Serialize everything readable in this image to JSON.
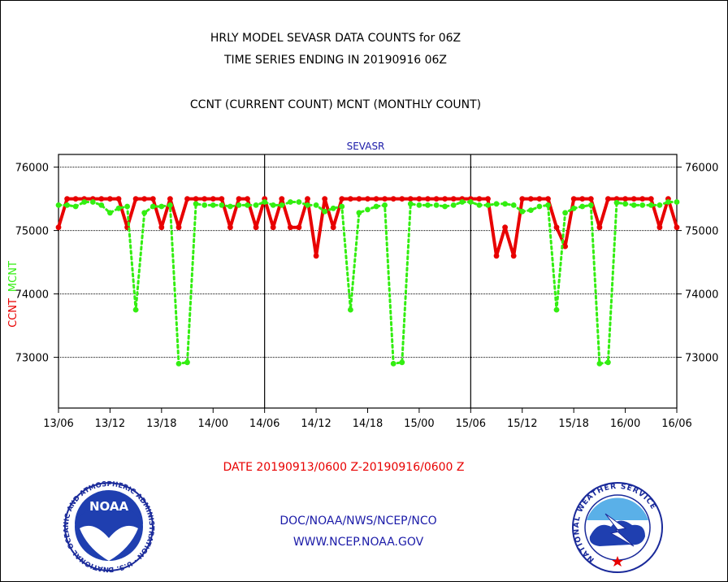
{
  "chart_data": {
    "type": "line",
    "title": "HRLY MODEL SEVASR DATA COUNTS for 06Z",
    "subtitle": "TIME SERIES ENDING IN 20190916 06Z",
    "description_line": "CCNT (CURRENT COUNT) MCNT (MONTHLY COUNT)",
    "panel_label": "SEVASR",
    "ylabel_ccnt": "CCNT",
    "ylabel_mcnt": "MCNT",
    "ylim": [
      72200,
      76200
    ],
    "yticks": [
      {
        "value": 73000,
        "label": "73000"
      },
      {
        "value": 74000,
        "label": "74000"
      },
      {
        "value": 75000,
        "label": "75000"
      },
      {
        "value": 76000,
        "label": "76000"
      }
    ],
    "xlim": [
      0,
      72
    ],
    "xticks": [
      {
        "hour": 0,
        "label": "13/06"
      },
      {
        "hour": 6,
        "label": "13/12"
      },
      {
        "hour": 12,
        "label": "13/18"
      },
      {
        "hour": 18,
        "label": "14/00"
      },
      {
        "hour": 24,
        "label": "14/06"
      },
      {
        "hour": 30,
        "label": "14/12"
      },
      {
        "hour": 36,
        "label": "14/18"
      },
      {
        "hour": 42,
        "label": "15/00"
      },
      {
        "hour": 48,
        "label": "15/06"
      },
      {
        "hour": 54,
        "label": "15/12"
      },
      {
        "hour": 60,
        "label": "15/18"
      },
      {
        "hour": 66,
        "label": "16/00"
      },
      {
        "hour": 72,
        "label": "16/06"
      }
    ],
    "day_dividers": [
      24,
      48
    ],
    "date_range_label": "DATE 20190913/0600 Z-20190916/0600 Z",
    "series": [
      {
        "name": "CCNT",
        "color": "#e80000",
        "style": "solid",
        "values": [
          75050,
          75500,
          75500,
          75500,
          75500,
          75500,
          75500,
          75500,
          75050,
          75500,
          75500,
          75500,
          75050,
          75500,
          75050,
          75500,
          75500,
          75500,
          75500,
          75500,
          75050,
          75500,
          75500,
          75050,
          75500,
          75050,
          75500,
          75050,
          75050,
          75500,
          74600,
          75500,
          75050,
          75500,
          75500,
          75500,
          75500,
          75500,
          75500,
          75500,
          75500,
          75500,
          75500,
          75500,
          75500,
          75500,
          75500,
          75500,
          75500,
          75500,
          75500,
          74600,
          75050,
          74600,
          75500,
          75500,
          75500,
          75500,
          75050,
          74750,
          75500,
          75500,
          75500,
          75050,
          75500,
          75500,
          75500,
          75500,
          75500,
          75500,
          75050,
          75500,
          75050
        ]
      },
      {
        "name": "MCNT",
        "color": "#33ee11",
        "style": "dotted",
        "values": [
          75400,
          75400,
          75380,
          75450,
          75450,
          75400,
          75280,
          75350,
          75380,
          73750,
          75280,
          75380,
          75380,
          75400,
          72900,
          72920,
          75420,
          75400,
          75400,
          75400,
          75380,
          75400,
          75400,
          75400,
          75450,
          75400,
          75400,
          75450,
          75450,
          75400,
          75400,
          75300,
          75350,
          75380,
          73750,
          75280,
          75330,
          75380,
          75400,
          72900,
          72920,
          75420,
          75400,
          75400,
          75400,
          75380,
          75400,
          75450,
          75450,
          75400,
          75400,
          75420,
          75420,
          75400,
          75300,
          75320,
          75380,
          75400,
          73750,
          75280,
          75350,
          75380,
          75400,
          72900,
          72920,
          75440,
          75420,
          75400,
          75400,
          75400,
          75400,
          75450,
          75450
        ]
      }
    ]
  },
  "footer": {
    "agency_line": "DOC/NOAA/NWS/NCEP/NCO",
    "website": "WWW.NCEP.NOAA.GOV",
    "noaa_logo_text": "NOAA",
    "noaa_ring_text": "NATIONAL OCEANIC AND ATMOSPHERIC ADMINISTRATION · U.S. DEPARTMENT OF COMMERCE ·",
    "nws_ring_text": "NATIONAL WEATHER SERVICE"
  }
}
